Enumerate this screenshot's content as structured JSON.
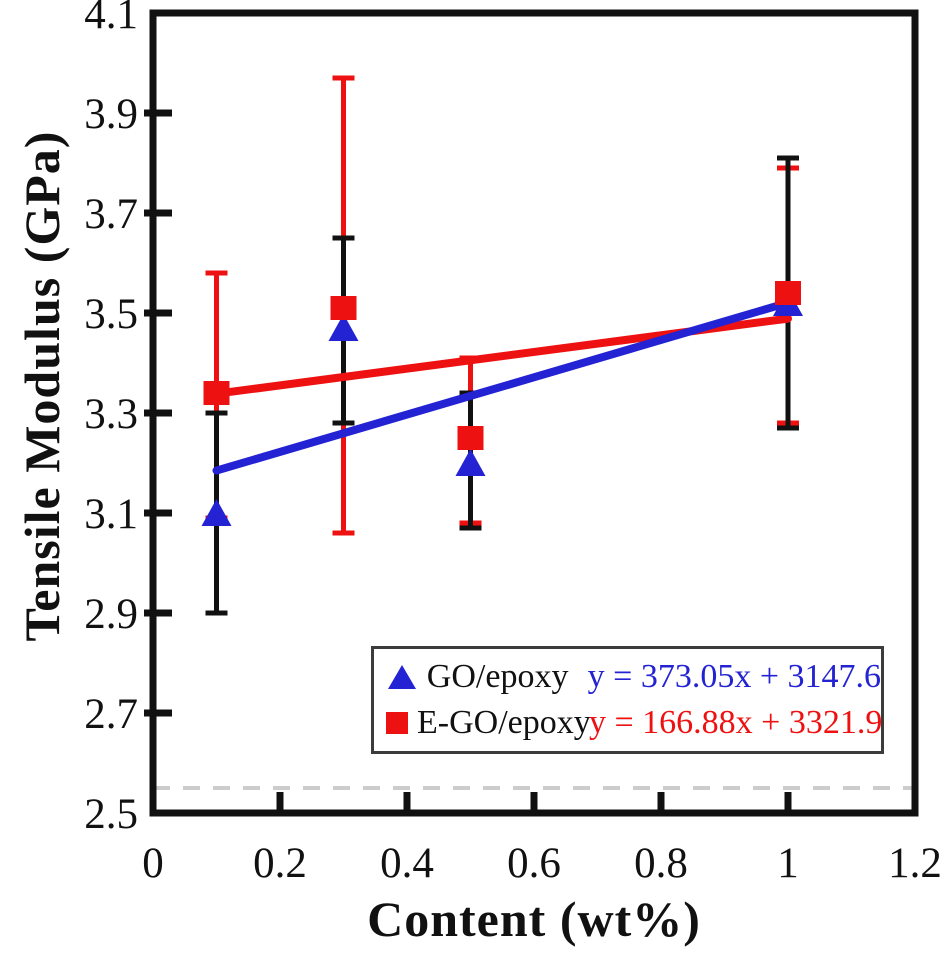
{
  "axes": {
    "x_label": "Content (wt%)",
    "y_label": "Tensile Modulus (GPa)"
  },
  "legend": {
    "entries": [
      {
        "label": "GO/epoxy",
        "equation": "y = 373.05x + 3147.6"
      },
      {
        "label": "E-GO/epoxy",
        "equation": "y = 166.88x + 3321.9"
      }
    ]
  },
  "chart_data": {
    "type": "scatter",
    "title": "",
    "xlabel": "Content (wt%)",
    "ylabel": "Tensile Modulus (GPa)",
    "xlim": [
      0,
      1.2
    ],
    "ylim": [
      2.5,
      4.1
    ],
    "xtick_values": [
      0,
      0.2,
      0.4,
      0.6,
      0.8,
      1,
      1.2
    ],
    "xtick_labels": [
      "0",
      "0.2",
      "0.4",
      "0.6",
      "0.8",
      "1",
      "1.2"
    ],
    "ytick_values": [
      2.5,
      2.7,
      2.9,
      3.1,
      3.3,
      3.5,
      3.7,
      3.9,
      4.1
    ],
    "ytick_labels": [
      "2.5",
      "2.7",
      "2.9",
      "3.1",
      "3.3",
      "3.5",
      "3.7",
      "3.9",
      "4.1"
    ],
    "grid": false,
    "legend_position": "inside bottom-center",
    "frame_color": "#111111",
    "baseline": {
      "y": 2.55,
      "style": "dashed",
      "color": "#cccccc"
    },
    "series": [
      {
        "name": "GO/epoxy",
        "marker": "triangle-up",
        "color": "#2323d4",
        "error_bar_color": "#111111",
        "points": [
          {
            "x": 0.1,
            "y": 3.1,
            "y_low": 2.9,
            "y_high": 3.3
          },
          {
            "x": 0.3,
            "y": 3.47,
            "y_low": 3.28,
            "y_high": 3.65
          },
          {
            "x": 0.5,
            "y": 3.2,
            "y_low": 3.07,
            "y_high": 3.34
          },
          {
            "x": 1.0,
            "y": 3.52,
            "y_low": 3.27,
            "y_high": 3.81
          }
        ],
        "fit_line": {
          "equation": "y = 373.05x + 3147.6",
          "slope_gpa_per_wt": 0.37305,
          "intercept_gpa": 3.1476,
          "x_start": 0.1,
          "x_end": 1.0
        }
      },
      {
        "name": "E-GO/epoxy",
        "marker": "square",
        "color": "#ee1111",
        "error_bar_color": "#ee1111",
        "points": [
          {
            "x": 0.1,
            "y": 3.34,
            "y_low": 3.09,
            "y_high": 3.58
          },
          {
            "x": 0.3,
            "y": 3.51,
            "y_low": 3.06,
            "y_high": 3.97
          },
          {
            "x": 0.5,
            "y": 3.25,
            "y_low": 3.08,
            "y_high": 3.41
          },
          {
            "x": 1.0,
            "y": 3.54,
            "y_low": 3.28,
            "y_high": 3.79
          }
        ],
        "fit_line": {
          "equation": "y = 166.88x + 3321.9",
          "slope_gpa_per_wt": 0.16688,
          "intercept_gpa": 3.3219,
          "x_start": 0.1,
          "x_end": 1.0
        }
      }
    ]
  }
}
